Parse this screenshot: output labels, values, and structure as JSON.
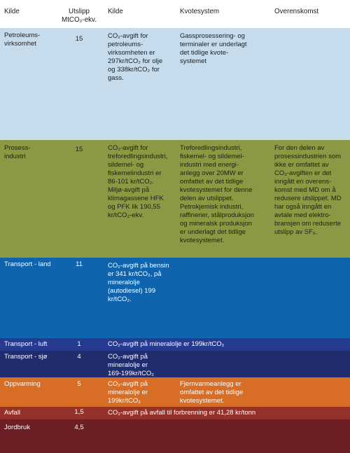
{
  "table": {
    "headers": [
      "Kilde",
      "Utslipp\nMtCO₂-ekv.",
      "Kilde",
      "Kvotesystem",
      "Overenskomst"
    ],
    "rows": [
      {
        "source": "Petroleums-\nvirksomhet",
        "emission": "15",
        "tax": "CO₂-avgift for\npetroleums-\nvirksomheten er\n297kr/tCO₂ for olje\nog 338kr/tCO₂ for\ngass.",
        "quota": "Gassprosessering- og\nterminaler er underlagt\ndet tidlige kvote-\nsystemet",
        "agreement": "",
        "bg": "#c6dcec"
      },
      {
        "source": "Prosess-\nindustri",
        "emission": "15",
        "tax": "CO₂-avgift for\ntreforedlingsindustri,\nsildemel- og\nfiskemelindustri er\n86-101 kr/tCO₂.\nMiljø-avgift på\nklimagassene HFK\nog PFK lik 190,55\nkr/tCO₂-ekv.",
        "quota": "Treforedlingsindustri,\nfiskemel- og sildemel-\nindustri med  energi-\nanlegg over 20MW er\nomfattet av det tidlige\nkvotesystemet for denne\ndelen av utslippet.\nPetrokjemisk industri,\nraffinerier, stålproduksjon\nog mineralsk produksjon\ner underlagt det tidlige\nkvotesystemet.",
        "agreement": "For den delen av\nprosessindustrien som\nikke er omfattet av\nCO₂-avgiften er det\ninngått en overens-\nkomst med MD om å\nredusere utslippet. MD\nhar også inngått en\navtale med elektro-\nbransjen om reduserte\nutslipp av SF₆.",
        "bg": "#8c9843"
      },
      {
        "source": "Transport - land",
        "emission": "11",
        "tax": "CO₂-avgift på bensin\ner 341 kr/tCO₂, på\nmineralolje\n(autodiesel) 199\nkr/tCO₂.",
        "quota": "",
        "agreement": "",
        "bg": "#0f64ad"
      },
      {
        "source": "Transport - luft",
        "emission": "1",
        "tax": "CO₂-avgift på mineralolje er 199kr/tCO₂",
        "quota": "",
        "agreement": "",
        "bg": "#263a8f"
      },
      {
        "source": "Transport - sjø",
        "emission": "4",
        "tax": "CO₂-avgift på\nmineralolje er\n169-199kr/tCO₂",
        "quota": "",
        "agreement": "",
        "bg": "#202c6c"
      },
      {
        "source": "Oppvarming",
        "emission": "5",
        "tax": "CO₂-avgift på\nmineralolje er\n199kr/tCO₂",
        "quota": "Fjernvarmeanlegg er\nomfattet av det tidlige\nkvotesystemet.",
        "agreement": "",
        "bg": "#d86d25"
      },
      {
        "source": "Avfall",
        "emission": "1,5",
        "tax": "CO₂-avgift på avfall til forbrenning er 41,28 kr/tonn",
        "quota": "",
        "agreement": "",
        "bg": "#95312b"
      },
      {
        "source": "Jordbruk",
        "emission": "4,5",
        "tax": "",
        "quota": "",
        "agreement": "",
        "bg": "#6c1e25"
      }
    ]
  }
}
